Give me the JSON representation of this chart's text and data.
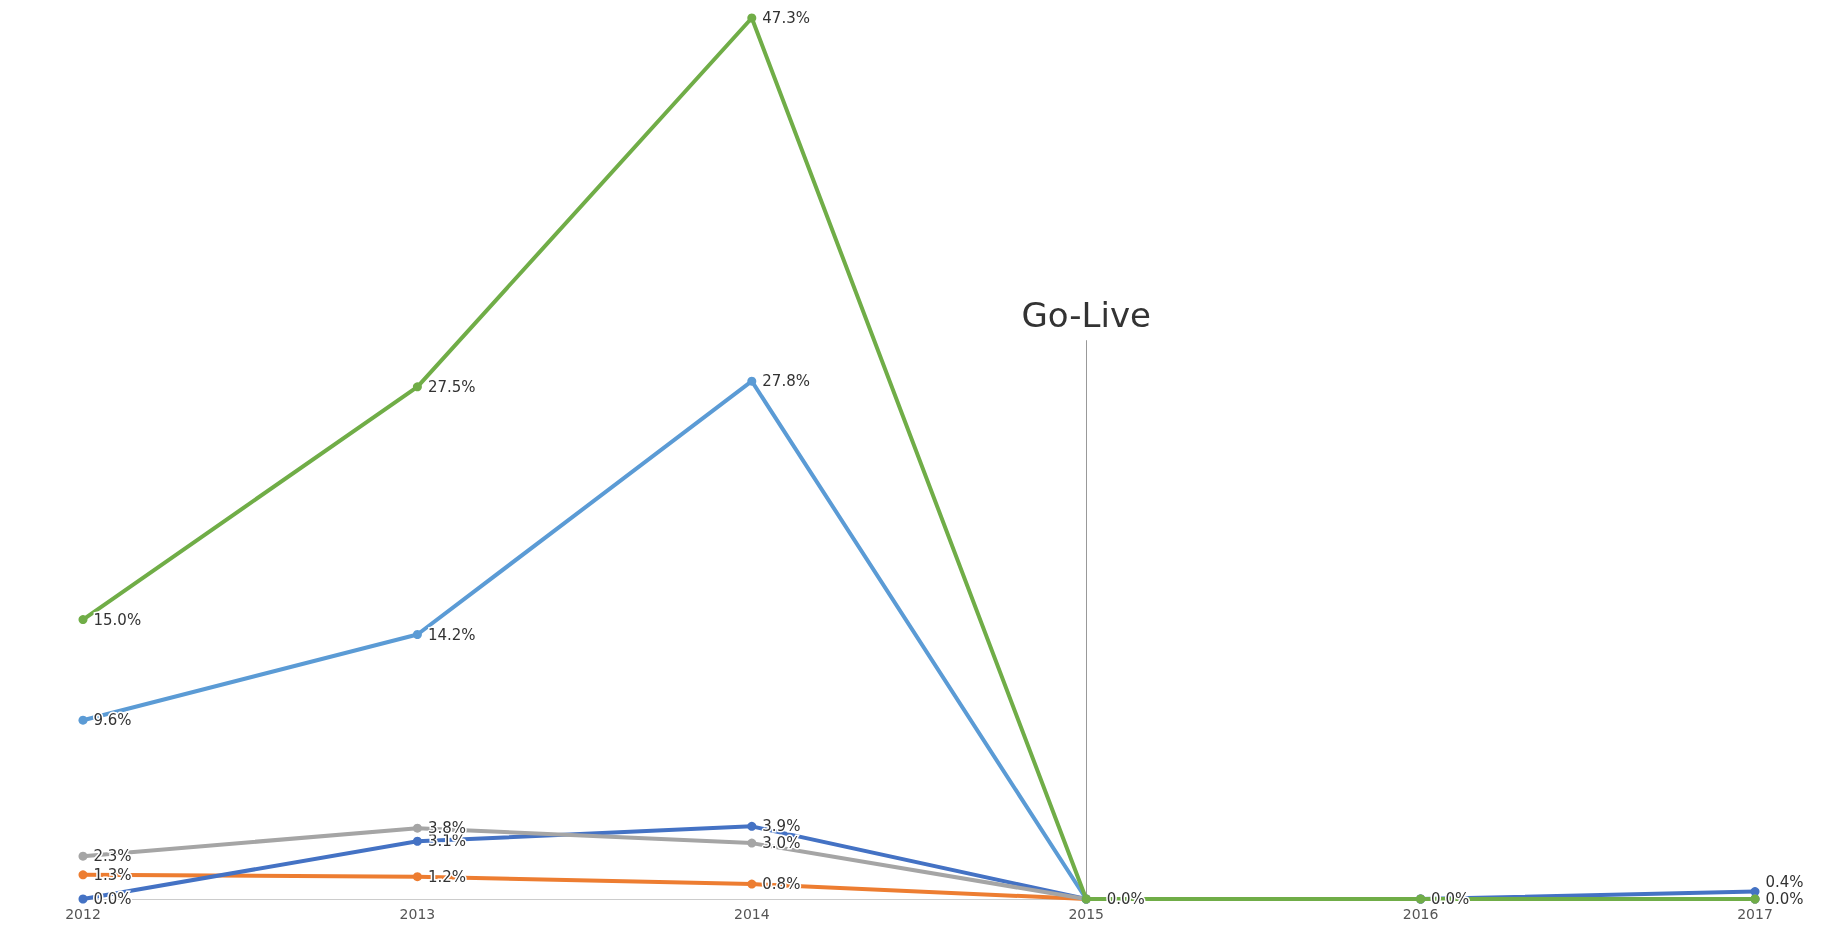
{
  "chart_data": {
    "type": "line",
    "categories": [
      "2012",
      "2013",
      "2014",
      "2015",
      "2016",
      "2017"
    ],
    "series": [
      {
        "color": "#70ad47",
        "values": [
          15.0,
          27.5,
          47.3,
          0.0,
          0.0,
          0.0
        ],
        "value_labels": [
          "15.0%",
          "27.5%",
          "47.3%",
          "0.0%",
          "0.0%",
          "0.0%"
        ]
      },
      {
        "color": "#5b9bd5",
        "values": [
          9.6,
          14.2,
          27.8,
          0.0,
          0.0,
          0.0
        ],
        "value_labels": [
          "9.6%",
          "14.2%",
          "27.8%",
          null,
          null,
          null
        ]
      },
      {
        "color": "#a5a5a5",
        "values": [
          2.3,
          3.8,
          3.0,
          0.0,
          0.0,
          0.0
        ],
        "value_labels": [
          "2.3%",
          "3.8%",
          "3.0%",
          null,
          null,
          null
        ]
      },
      {
        "color": "#4472c4",
        "values": [
          0.0,
          3.1,
          3.9,
          0.0,
          0.0,
          0.4
        ],
        "value_labels": [
          "0.0%",
          "3.1%",
          "3.9%",
          null,
          null,
          "0.4%"
        ]
      },
      {
        "color": "#ed7d31",
        "values": [
          1.3,
          1.2,
          0.8,
          0.0,
          0.0,
          0.0
        ],
        "value_labels": [
          "1.3%",
          "1.2%",
          "0.8%",
          null,
          null,
          null
        ]
      }
    ],
    "annotations": [
      {
        "text": "Go-Live",
        "x": "2015",
        "y": 0
      }
    ],
    "marker": "circle",
    "line_style": "solid",
    "grid": false
  }
}
